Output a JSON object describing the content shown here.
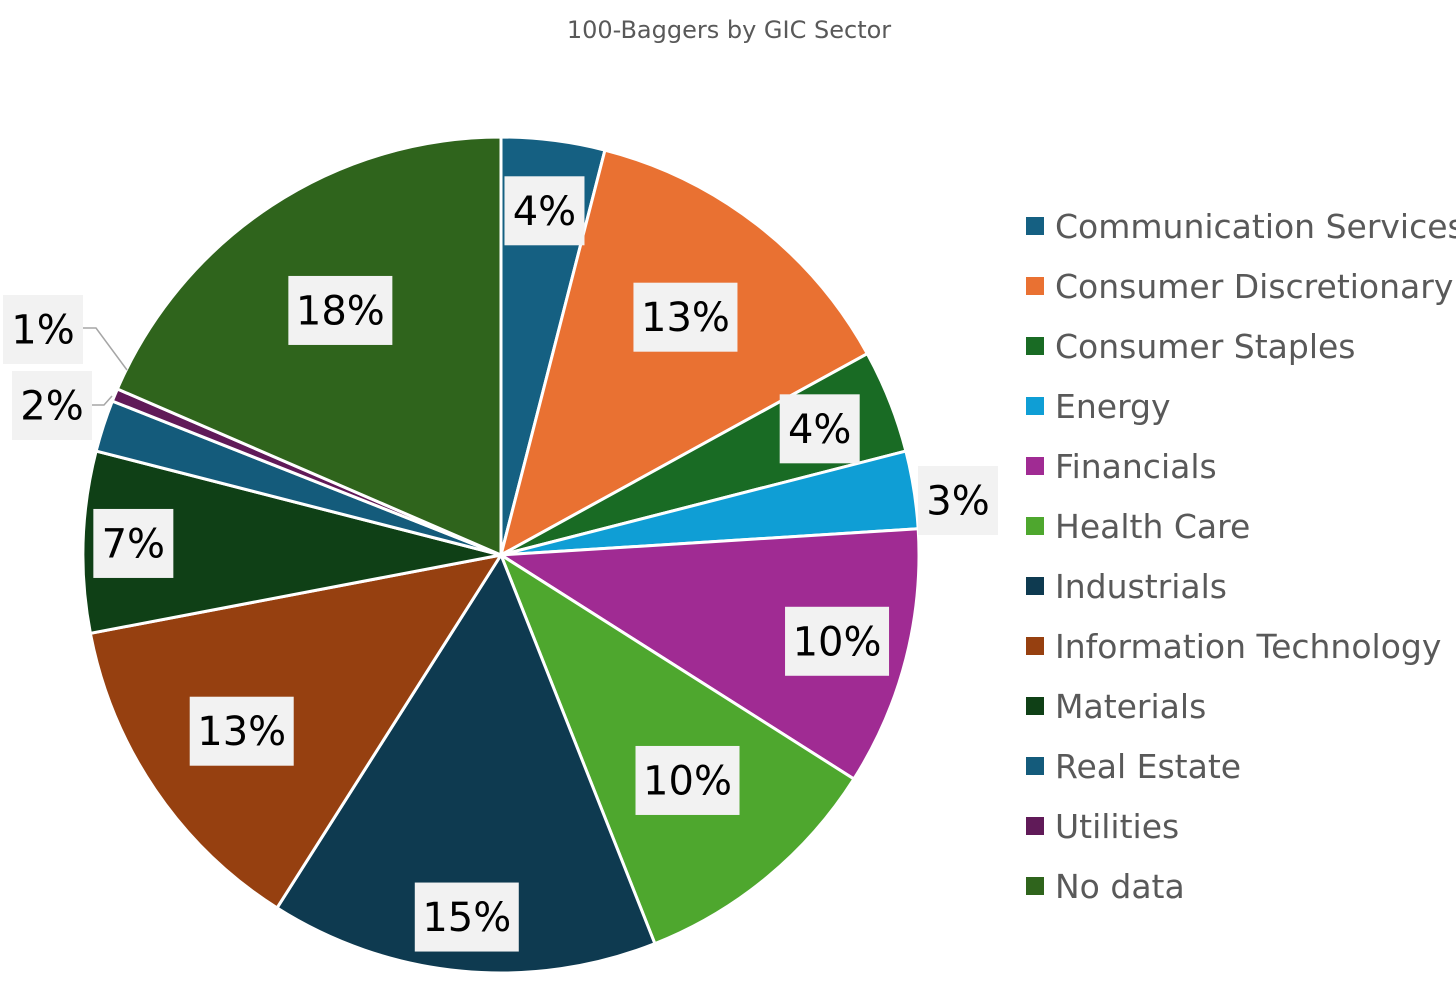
{
  "chart_data": {
    "type": "pie",
    "title": "100-Baggers by GIC Sector",
    "legend_position": "right",
    "slices": [
      {
        "name": "Communication Services",
        "value": 4,
        "label": "4%",
        "color": "#156082"
      },
      {
        "name": "Consumer Discretionary",
        "value": 13,
        "label": "13%",
        "color": "#E97132"
      },
      {
        "name": "Consumer Staples",
        "value": 4,
        "label": "4%",
        "color": "#196B24"
      },
      {
        "name": "Energy",
        "value": 3,
        "label": "3%",
        "color": "#0F9ED5"
      },
      {
        "name": "Financials",
        "value": 10,
        "label": "10%",
        "color": "#A02B93"
      },
      {
        "name": "Health Care",
        "value": 10,
        "label": "10%",
        "color": "#4EA72E"
      },
      {
        "name": "Industrials",
        "value": 15,
        "label": "15%",
        "color": "#0E3A50"
      },
      {
        "name": "Information Technology",
        "value": 13,
        "label": "13%",
        "color": "#964010"
      },
      {
        "name": "Materials",
        "value": 7,
        "label": "7%",
        "color": "#0F4016"
      },
      {
        "name": "Real Estate",
        "value": 2,
        "label": "2%",
        "color": "#145B7B"
      },
      {
        "name": "Utilities",
        "value": 0.5,
        "label": "1%",
        "color": "#601A58"
      },
      {
        "name": "No data",
        "value": 18.5,
        "label": "18%",
        "color": "#2F641C"
      }
    ]
  }
}
